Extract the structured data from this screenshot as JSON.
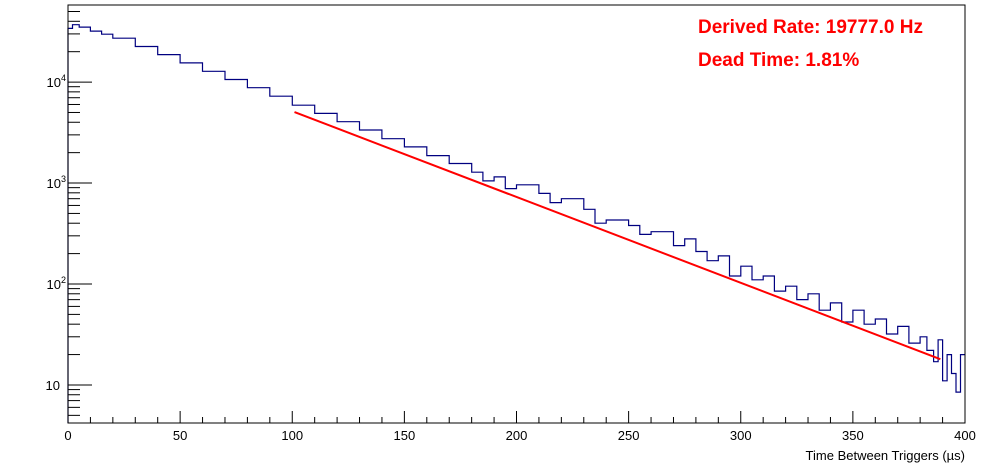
{
  "chart_data": {
    "type": "line",
    "title": "",
    "xlabel": "Time Between Triggers (µs)",
    "ylabel": "",
    "xlim": [
      0,
      400
    ],
    "ylim": [
      4.2,
      58000
    ],
    "yscale": "log",
    "grid": false,
    "x_ticks": [
      0,
      50,
      100,
      150,
      200,
      250,
      300,
      350,
      400
    ],
    "y_ticks": [
      {
        "value": 10,
        "label": "10",
        "exp": ""
      },
      {
        "value": 100,
        "label": "10",
        "exp": "2"
      },
      {
        "value": 1000,
        "label": "10",
        "exp": "3"
      },
      {
        "value": 10000,
        "label": "10",
        "exp": "4"
      }
    ],
    "annotations": [
      "Derived Rate: 19777.0 Hz",
      "Dead Time: 1.81%"
    ],
    "series": [
      {
        "kind": "histogram",
        "color": "#000080",
        "x": [
          0,
          2,
          5,
          10,
          15,
          20,
          30,
          40,
          50,
          60,
          70,
          80,
          90,
          100,
          110,
          120,
          130,
          140,
          150,
          160,
          170,
          180,
          185,
          190,
          195,
          200,
          210,
          215,
          220,
          230,
          235,
          240,
          250,
          255,
          260,
          270,
          275,
          280,
          285,
          290,
          295,
          300,
          305,
          310,
          315,
          320,
          325,
          330,
          335,
          340,
          345,
          350,
          355,
          360,
          365,
          370,
          375,
          380,
          383,
          386,
          388,
          390,
          392,
          394,
          396,
          398,
          400
        ],
        "y": [
          34000,
          37000,
          35000,
          32000,
          29800,
          27200,
          22500,
          18700,
          15500,
          12800,
          10600,
          8800,
          7250,
          5900,
          4900,
          4050,
          3350,
          2750,
          2280,
          1870,
          1560,
          1280,
          1050,
          1150,
          880,
          960,
          790,
          640,
          700,
          550,
          400,
          430,
          380,
          310,
          330,
          240,
          280,
          210,
          170,
          190,
          120,
          150,
          110,
          120,
          85,
          95,
          70,
          80,
          55,
          65,
          42,
          55,
          40,
          45,
          32,
          38,
          26,
          30,
          22,
          17,
          28,
          11,
          20,
          13,
          8.5,
          20,
          10
        ]
      },
      {
        "kind": "fit",
        "color": "#ff0000",
        "x": [
          101,
          389
        ],
        "y": [
          5050,
          18
        ]
      }
    ]
  }
}
